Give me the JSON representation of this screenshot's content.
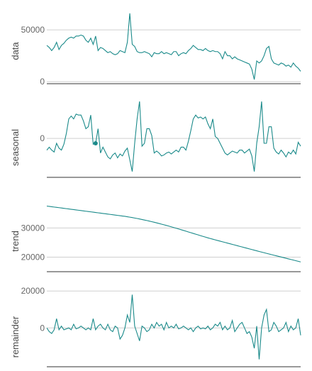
{
  "chart_data": {
    "type": "line",
    "title": "",
    "x_count": 105,
    "line_color": "#1a8a8a",
    "panels": [
      {
        "name": "data",
        "ylim": [
          -2000,
          72000
        ],
        "yticks": [
          0,
          50000
        ],
        "tick_labels": [
          "0",
          "50000"
        ],
        "values": [
          35000,
          33000,
          30000,
          33000,
          38000,
          31000,
          35000,
          37000,
          40000,
          42000,
          43000,
          42000,
          44000,
          44000,
          45000,
          44000,
          40000,
          38000,
          42000,
          36000,
          44000,
          30000,
          33000,
          32000,
          30000,
          28000,
          29000,
          27000,
          26000,
          27000,
          30000,
          29000,
          28000,
          38000,
          66000,
          36000,
          34000,
          29000,
          28000,
          28000,
          29000,
          28000,
          27000,
          24000,
          28000,
          27000,
          27000,
          29000,
          27000,
          28000,
          27000,
          26000,
          29000,
          29000,
          25000,
          27000,
          28000,
          27000,
          30000,
          32000,
          35000,
          33000,
          31000,
          31000,
          30000,
          32000,
          30000,
          29000,
          30000,
          29000,
          29000,
          27000,
          22000,
          29000,
          25000,
          25000,
          22000,
          24000,
          22000,
          21000,
          20000,
          19000,
          18000,
          17000,
          12000,
          2000,
          20000,
          18000,
          20000,
          25000,
          32000,
          34000,
          22000,
          18000,
          17000,
          16000,
          18000,
          17000,
          15000,
          16000,
          14000,
          18000,
          15000,
          13000,
          10000
        ]
      },
      {
        "name": "seasonal",
        "ylim": [
          -40000,
          38000
        ],
        "yticks": [
          0
        ],
        "tick_labels": [
          "0"
        ],
        "highlight_index": 20,
        "values": [
          -12000,
          -9000,
          -12000,
          -14000,
          -5000,
          -10000,
          -12000,
          -6000,
          5000,
          20000,
          23000,
          20000,
          25000,
          24000,
          24000,
          18000,
          10000,
          12000,
          24000,
          -6000,
          -5000,
          10000,
          -15000,
          -9000,
          -14000,
          -19000,
          -21000,
          -17000,
          -15000,
          -20000,
          -16000,
          -18000,
          -13000,
          -10000,
          -22000,
          -34000,
          -5000,
          20000,
          38000,
          -8000,
          -5000,
          10000,
          10000,
          3000,
          -15000,
          -13000,
          -15000,
          -18000,
          -17000,
          -15000,
          -14000,
          -16000,
          -14000,
          -12000,
          -14000,
          -9000,
          -9000,
          -12000,
          -3000,
          8000,
          20000,
          24000,
          21000,
          22000,
          20000,
          22000,
          15000,
          10000,
          20000,
          2000,
          0,
          -5000,
          -10000,
          -15000,
          -17000,
          -15000,
          -13000,
          -14000,
          -15000,
          -12000,
          -12000,
          -15000,
          -13000,
          -11000,
          -18000,
          -34000,
          -5000,
          12000,
          38000,
          -5000,
          -5000,
          12000,
          12000,
          -10000,
          -14000,
          -16000,
          -12000,
          -15000,
          -19000,
          -14000,
          -16000,
          -12000,
          -16000,
          -4000,
          -8000
        ]
      },
      {
        "name": "trend",
        "ylim": [
          15000,
          42000
        ],
        "yticks": [
          20000,
          30000
        ],
        "tick_labels": [
          "20000",
          "30000"
        ],
        "values": [
          37500,
          37390,
          37280,
          37170,
          37060,
          36950,
          36840,
          36730,
          36620,
          36510,
          36400,
          36290,
          36180,
          36070,
          35960,
          35850,
          35740,
          35630,
          35520,
          35410,
          35300,
          35190,
          35080,
          34970,
          34860,
          34750,
          34640,
          34530,
          34420,
          34310,
          34200,
          34090,
          33980,
          33840,
          33700,
          33560,
          33400,
          33240,
          33080,
          32900,
          32720,
          32540,
          32350,
          32150,
          31950,
          31740,
          31520,
          31300,
          31080,
          30850,
          30620,
          30380,
          30140,
          29900,
          29650,
          29400,
          29150,
          28890,
          28630,
          28380,
          28120,
          27860,
          27610,
          27350,
          27100,
          26850,
          26600,
          26370,
          26140,
          25910,
          25690,
          25470,
          25250,
          25030,
          24810,
          24590,
          24370,
          24150,
          23920,
          23700,
          23480,
          23260,
          23040,
          22820,
          22600,
          22380,
          22160,
          21940,
          21720,
          21500,
          21290,
          21080,
          20870,
          20660,
          20450,
          20240,
          20030,
          19820,
          19610,
          19400,
          19190,
          18980,
          18770,
          18560,
          18350
        ]
      },
      {
        "name": "remainder",
        "ylim": [
          -21000,
          22000
        ],
        "yticks": [
          0,
          20000
        ],
        "tick_labels": [
          "0",
          "20000"
        ],
        "values": [
          0,
          -2000,
          -3000,
          -1000,
          5000,
          -1000,
          1000,
          -1000,
          -500,
          0,
          -1000,
          2000,
          -500,
          0,
          1000,
          0,
          -1000,
          0,
          -1000,
          5000,
          -1000,
          1000,
          2000,
          0,
          -1000,
          2000,
          -1000,
          -2000,
          1000,
          0,
          -6000,
          -4000,
          0,
          7000,
          3000,
          18000,
          1000,
          -3000,
          -7000,
          1000,
          0,
          -2000,
          -1000,
          2000,
          0,
          3000,
          1000,
          2000,
          -1000,
          3000,
          0,
          1000,
          0,
          2000,
          -500,
          0,
          1000,
          0,
          -1000,
          0,
          -2000,
          0,
          1000,
          -500,
          0,
          -500,
          1000,
          -1000,
          0,
          2000,
          1000,
          3000,
          -1000,
          1000,
          -1000,
          0,
          4000,
          -2000,
          0,
          2000,
          3000,
          0,
          -3000,
          -2000,
          -5000,
          -11000,
          1000,
          -17000,
          0,
          7000,
          10000,
          -2000,
          -1000,
          3000,
          1000,
          -2000,
          -1000,
          0,
          3000,
          -2000,
          1000,
          -1000,
          0,
          5000,
          -4000
        ]
      }
    ]
  }
}
